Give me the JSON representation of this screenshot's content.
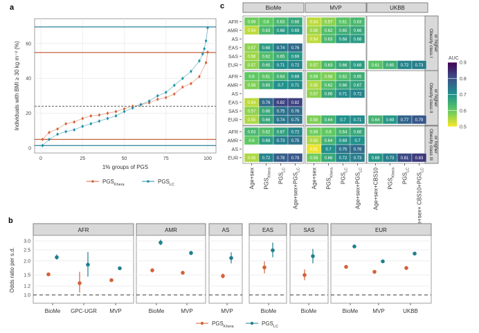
{
  "panel_labels": {
    "a": "a",
    "b": "b",
    "c": "c"
  },
  "chart_data": [
    {
      "type": "scatter",
      "panel": "a",
      "xlabel": "1% groups of PGS",
      "ylabel": "Individuals with BMI ≥ 30 kg m⁻² (%)",
      "xlim": [
        0,
        100
      ],
      "ylim": [
        0,
        72
      ],
      "xticks": [
        "0",
        "25",
        "50",
        "75",
        "100"
      ],
      "yticks": [
        "0",
        "20",
        "40",
        "60"
      ],
      "grid": true,
      "legend_position": "bottom",
      "reference_lines": [
        {
          "y": 69.5,
          "color": "#2b7f9a",
          "style": "solid"
        },
        {
          "y": 54.8,
          "color": "#c8603c",
          "style": "solid"
        },
        {
          "y": 24,
          "color": "#777777",
          "style": "dashed"
        },
        {
          "y": 5,
          "color": "#c8603c",
          "style": "solid"
        },
        {
          "y": 1.5,
          "color": "#2b7f9a",
          "style": "solid"
        }
      ],
      "series": [
        {
          "name": "PGS",
          "sub": "Khera",
          "color": "#d4623a",
          "x": [
            1,
            5,
            10,
            15,
            20,
            25,
            30,
            35,
            40,
            45,
            50,
            55,
            60,
            65,
            70,
            75,
            80,
            85,
            90,
            95,
            99,
            100
          ],
          "y": [
            5,
            9,
            11,
            14,
            15,
            17,
            18.5,
            19,
            20,
            21,
            22.5,
            24,
            25,
            26,
            28,
            29,
            31,
            35,
            37,
            41,
            49,
            55
          ]
        },
        {
          "name": "PGS",
          "sub": "LC",
          "color": "#1f8fa8",
          "x": [
            1,
            5,
            10,
            15,
            20,
            25,
            30,
            35,
            40,
            45,
            50,
            55,
            60,
            65,
            70,
            75,
            80,
            85,
            90,
            95,
            97,
            98,
            99,
            100
          ],
          "y": [
            1.5,
            5,
            8,
            9.5,
            10.5,
            12.5,
            14,
            15.5,
            17,
            18.5,
            21,
            23,
            25,
            27,
            30,
            32,
            36,
            40,
            44,
            50,
            54,
            57,
            61.5,
            69
          ]
        }
      ]
    },
    {
      "type": "heatmap",
      "panel": "c",
      "colorbar": {
        "title": "AUC",
        "range": [
          0.5,
          0.9
        ],
        "ticks": [
          "0.9",
          "0.8",
          "0.7",
          "0.6",
          "0.5"
        ],
        "colormap": "viridis"
      },
      "cohorts": [
        "BioMe",
        "MVP",
        "UKBB"
      ],
      "x_labels": {
        "BioMe": [
          {
            "t": "Age+sex",
            "s": ""
          },
          {
            "t": "PGS",
            "s": "Khera"
          },
          {
            "t": "PGS",
            "s": "LC"
          },
          {
            "t": "Age+sex+PGS",
            "s": "LC"
          }
        ],
        "MVP": [
          {
            "t": "Age+sex",
            "s": ""
          },
          {
            "t": "PGS",
            "s": "Khera"
          },
          {
            "t": "PGS",
            "s": "LC"
          },
          {
            "t": "Age+sex+PGS",
            "s": "LC"
          }
        ],
        "UKBB": [
          {
            "t": "Age+sex+CBS10",
            "s": ""
          },
          {
            "t": "PGS",
            "s": "Khera"
          },
          {
            "t": "PGS",
            "s": "LC"
          },
          {
            "t": "Age+sex+ CBS10+PGS",
            "s": "LC"
          }
        ]
      },
      "blocks": [
        {
          "label": [
            "Obesity class I",
            "or higher"
          ],
          "rows": [
            "AFR",
            "AMR",
            "AS",
            "EAS",
            "SAS",
            "EUR"
          ],
          "values": {
            "BioMe": [
              [
                0.59,
                0.6,
                0.63,
                0.66
              ],
              [
                0.54,
                0.63,
                0.68,
                0.69
              ],
              null,
              [
                0.57,
                0.68,
                0.74,
                0.76
              ],
              [
                0.56,
                0.62,
                0.65,
                0.69
              ],
              [
                0.57,
                0.65,
                0.71,
                0.72
              ]
            ],
            "MVP": [
              [
                0.54,
                0.57,
                0.61,
                0.63
              ],
              [
                0.56,
                0.62,
                0.65,
                0.66
              ],
              [
                0.54,
                0.63,
                0.68,
                0.68
              ],
              null,
              null,
              [
                0.57,
                0.63,
                0.66,
                0.68
              ]
            ],
            "UKBB": [
              null,
              null,
              null,
              null,
              null,
              [
                0.61,
                0.65,
                0.72,
                0.73
              ]
            ]
          }
        },
        {
          "label": [
            "Obesity class II",
            "or higher"
          ],
          "rows": [
            "AFR",
            "AMR",
            "AS",
            "EAS",
            "SAS",
            "EUR"
          ],
          "values": {
            "BioMe": [
              [
                0.6,
                0.61,
                0.64,
                0.69
              ],
              [
                0.58,
                0.65,
                0.7,
                0.71
              ],
              null,
              [
                0.54,
                0.76,
                0.82,
                0.82
              ],
              [
                0.57,
                0.66,
                0.75,
                0.76
              ],
              [
                0.55,
                0.66,
                0.74,
                0.75
              ]
            ],
            "MVP": [
              [
                0.59,
                0.58,
                0.62,
                0.65
              ],
              [
                0.55,
                0.62,
                0.66,
                0.67
              ],
              [
                0.57,
                0.66,
                0.71,
                0.72
              ],
              null,
              null,
              [
                0.58,
                0.64,
                0.7,
                0.71
              ]
            ],
            "UKBB": [
              null,
              null,
              null,
              null,
              null,
              [
                0.64,
                0.69,
                0.77,
                0.79
              ]
            ]
          }
        },
        {
          "label": [
            "Obesity class III",
            "or higher"
          ],
          "rows": [
            "AFR",
            "AMR",
            "AS",
            "EUR"
          ],
          "values": {
            "BioMe": [
              [
                0.63,
                0.62,
                0.67,
                0.72
              ],
              [
                0.6,
                0.68,
                0.73,
                0.75
              ],
              null,
              [
                0.55,
                0.72,
                0.78,
                0.79
              ]
            ],
            "MVP": [
              [
                0.59,
                0.6,
                0.64,
                0.66
              ],
              [
                0.55,
                0.64,
                0.69,
                0.7
              ],
              [
                0.51,
                0.7,
                0.75,
                0.76
              ],
              [
                0.59,
                0.66,
                0.72,
                0.73
              ]
            ],
            "UKBB": [
              null,
              null,
              null,
              [
                0.69,
                0.73,
                0.81,
                0.83
              ]
            ]
          }
        }
      ]
    },
    {
      "type": "scatter",
      "panel": "b",
      "ylabel": "Odds ratio per s.d.",
      "yscale": "log",
      "ylim": [
        0.93,
        3.3
      ],
      "yticks": [
        "1.0",
        "1.2",
        "1.5",
        "2.0",
        "2.5",
        "3.0"
      ],
      "reference_line": 1.0,
      "legend_position": "bottom",
      "series_names": [
        {
          "name": "PGS",
          "sub": "Khera",
          "color": "#d4623a"
        },
        {
          "name": "PGS",
          "sub": "LC",
          "color": "#1f7f8f"
        }
      ],
      "facets": [
        {
          "name": "AFR",
          "groups": [
            {
              "cohort": "BioMe",
              "khera": [
                1.52,
                1.47,
                1.58
              ],
              "lc": [
                2.15,
                2.05,
                2.28
              ]
            },
            {
              "cohort": "GPC-UGR",
              "khera": [
                1.27,
                1.05,
                1.6
              ],
              "lc": [
                1.85,
                1.45,
                2.4
              ]
            },
            {
              "cohort": "MVP",
              "khera": [
                1.35,
                1.33,
                1.37
              ],
              "lc": [
                1.72,
                1.68,
                1.76
              ]
            }
          ]
        },
        {
          "name": "AMR",
          "groups": [
            {
              "cohort": "BioMe",
              "khera": [
                1.65,
                1.58,
                1.72
              ],
              "lc": [
                2.9,
                2.75,
                3.08
              ]
            },
            {
              "cohort": "MVP",
              "khera": [
                1.57,
                1.52,
                1.62
              ],
              "lc": [
                2.35,
                2.25,
                2.45
              ]
            }
          ]
        },
        {
          "name": "AS",
          "groups": [
            {
              "cohort": "MVP",
              "khera": [
                1.47,
                1.4,
                1.55
              ],
              "lc": [
                2.12,
                1.9,
                2.38
              ]
            }
          ]
        },
        {
          "name": "EAS",
          "groups": [
            {
              "cohort": "BioMe",
              "khera": [
                1.75,
                1.55,
                1.98
              ],
              "lc": [
                2.48,
                2.15,
                2.9
              ]
            }
          ]
        },
        {
          "name": "SAS",
          "groups": [
            {
              "cohort": "BioMe",
              "khera": [
                1.5,
                1.35,
                1.68
              ],
              "lc": [
                2.2,
                1.9,
                2.55
              ]
            }
          ]
        },
        {
          "name": "EUR",
          "groups": [
            {
              "cohort": "BioMe",
              "khera": [
                1.77,
                1.73,
                1.82
              ],
              "lc": [
                2.68,
                2.6,
                2.78
              ]
            },
            {
              "cohort": "MVP",
              "khera": [
                1.6,
                1.58,
                1.62
              ],
              "lc": [
                1.98,
                1.95,
                2.01
              ]
            },
            {
              "cohort": "UKBB",
              "khera": [
                1.73,
                1.7,
                1.76
              ],
              "lc": [
                2.32,
                2.28,
                2.36
              ]
            }
          ]
        }
      ]
    }
  ]
}
